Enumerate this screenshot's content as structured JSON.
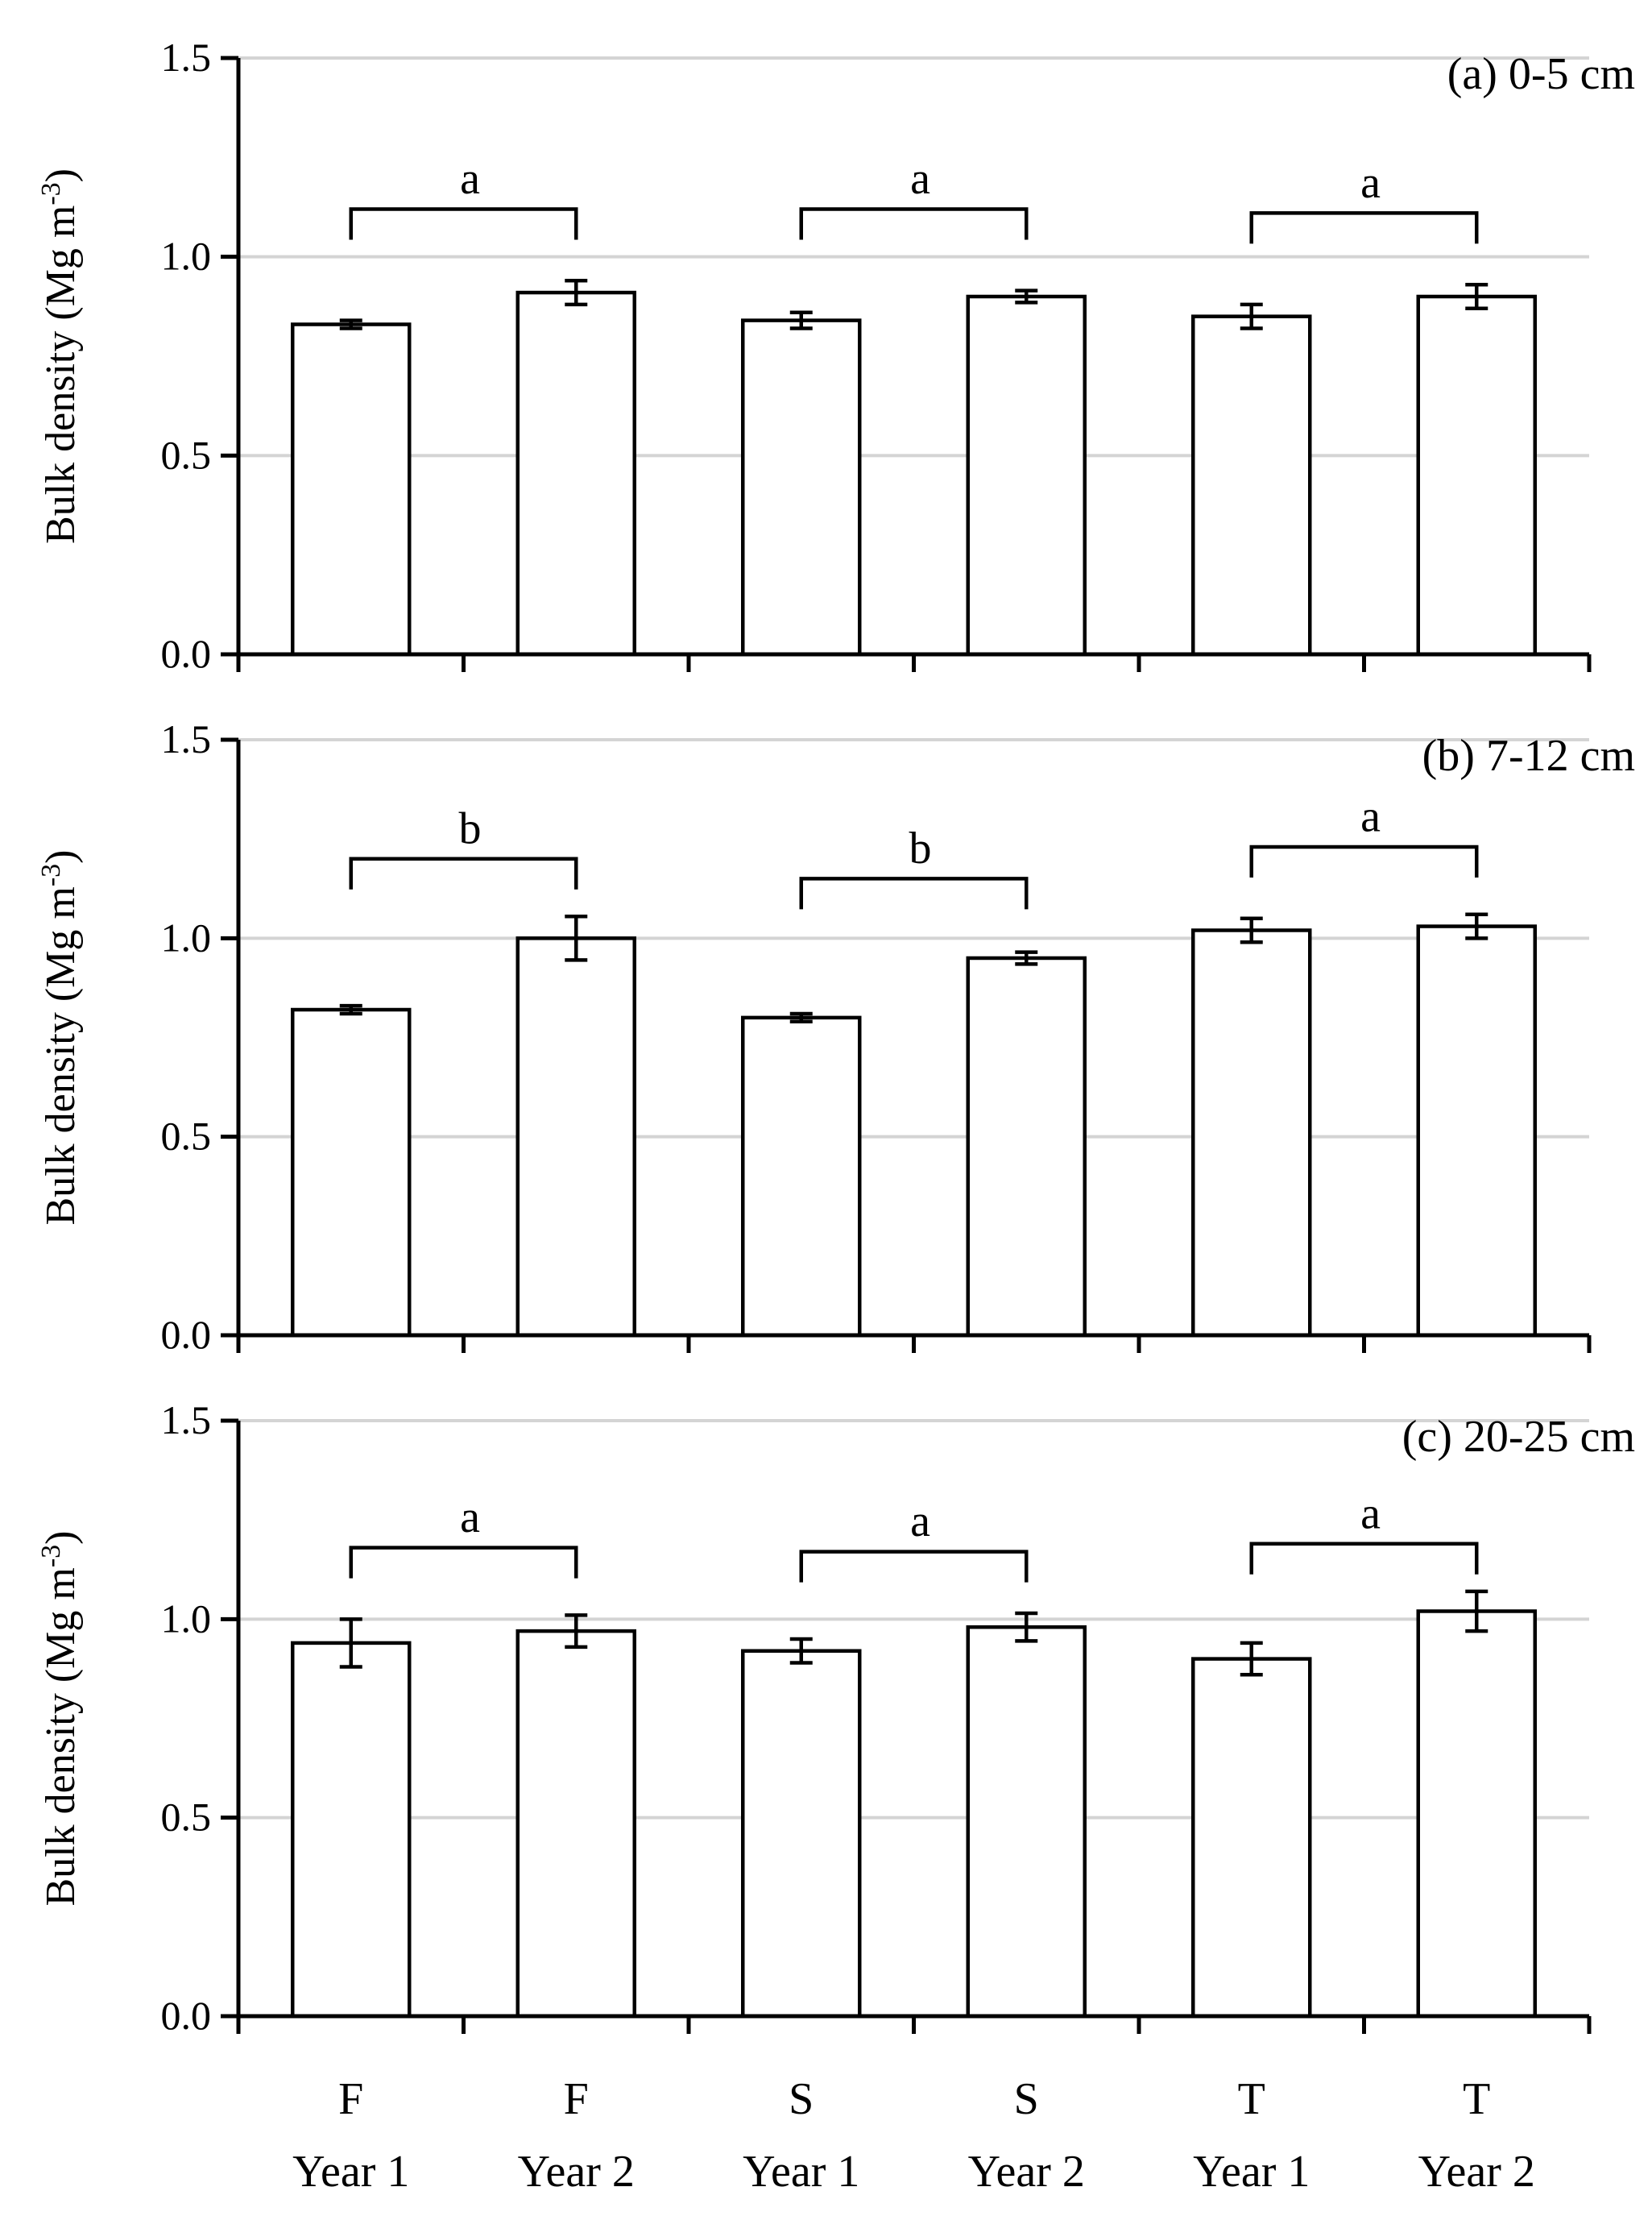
{
  "chart_data": [
    {
      "type": "bar",
      "title": "(a) 0-5 cm",
      "ylabel": "Bulk density (Mg m-3)",
      "ylabel_main": "Bulk density (Mg m",
      "ylabel_sup": "-3",
      "ylabel_close": ")",
      "ylim": [
        0,
        1.5
      ],
      "yticks": [
        "0.0",
        "0.5",
        "1.0",
        "1.5"
      ],
      "grid": true,
      "categories": [
        "F Year 1",
        "F Year 2",
        "S Year 1",
        "S Year 2",
        "T Year 1",
        "T Year 2"
      ],
      "values": [
        0.83,
        0.91,
        0.84,
        0.9,
        0.85,
        0.9
      ],
      "errors": [
        0.01,
        0.03,
        0.02,
        0.015,
        0.03,
        0.03
      ],
      "annotations": [
        {
          "label": "a",
          "from": 0,
          "to": 1,
          "y": 1.12,
          "label_y": 1.2
        },
        {
          "label": "a",
          "from": 2,
          "to": 3,
          "y": 1.12,
          "label_y": 1.2
        },
        {
          "label": "a",
          "from": 4,
          "to": 5,
          "y": 1.11,
          "label_y": 1.19
        }
      ]
    },
    {
      "type": "bar",
      "title": "(b) 7-12 cm",
      "ylabel": "Bulk density (Mg m-3)",
      "ylabel_main": "Bulk density (Mg m",
      "ylabel_sup": "-3",
      "ylabel_close": ")",
      "ylim": [
        0,
        1.5
      ],
      "yticks": [
        "0.0",
        "0.5",
        "1.0",
        "1.5"
      ],
      "grid": true,
      "categories": [
        "F Year 1",
        "F Year 2",
        "S Year 1",
        "S Year 2",
        "T Year 1",
        "T Year 2"
      ],
      "values": [
        0.82,
        1.0,
        0.8,
        0.95,
        1.02,
        1.03
      ],
      "errors": [
        0.01,
        0.055,
        0.01,
        0.015,
        0.03,
        0.03
      ],
      "annotations": [
        {
          "label": "b",
          "from": 0,
          "to": 1,
          "y": 1.2,
          "label_y": 1.28
        },
        {
          "label": "b",
          "from": 2,
          "to": 3,
          "y": 1.15,
          "label_y": 1.23
        },
        {
          "label": "a",
          "from": 4,
          "to": 5,
          "y": 1.23,
          "label_y": 1.31
        }
      ]
    },
    {
      "type": "bar",
      "title": "(c) 20-25 cm",
      "ylabel": "Bulk density (Mg m-3)",
      "ylabel_main": "Bulk density (Mg m",
      "ylabel_sup": "-3",
      "ylabel_close": ")",
      "ylim": [
        0,
        1.5
      ],
      "yticks": [
        "0.0",
        "0.5",
        "1.0",
        "1.5"
      ],
      "grid": true,
      "categories": [
        "F Year 1",
        "F Year 2",
        "S Year 1",
        "S Year 2",
        "T Year 1",
        "T Year 2"
      ],
      "values": [
        0.94,
        0.97,
        0.92,
        0.98,
        0.9,
        1.02
      ],
      "errors": [
        0.06,
        0.04,
        0.03,
        0.035,
        0.04,
        0.05
      ],
      "annotations": [
        {
          "label": "a",
          "from": 0,
          "to": 1,
          "y": 1.18,
          "label_y": 1.26
        },
        {
          "label": "a",
          "from": 2,
          "to": 3,
          "y": 1.17,
          "label_y": 1.25
        },
        {
          "label": "a",
          "from": 4,
          "to": 5,
          "y": 1.19,
          "label_y": 1.27
        }
      ]
    }
  ],
  "x_axis": {
    "treatments": [
      "F",
      "F",
      "S",
      "S",
      "T",
      "T"
    ],
    "years": [
      "Year 1",
      "Year 2",
      "Year 1",
      "Year 2",
      "Year 1",
      "Year 2"
    ]
  }
}
